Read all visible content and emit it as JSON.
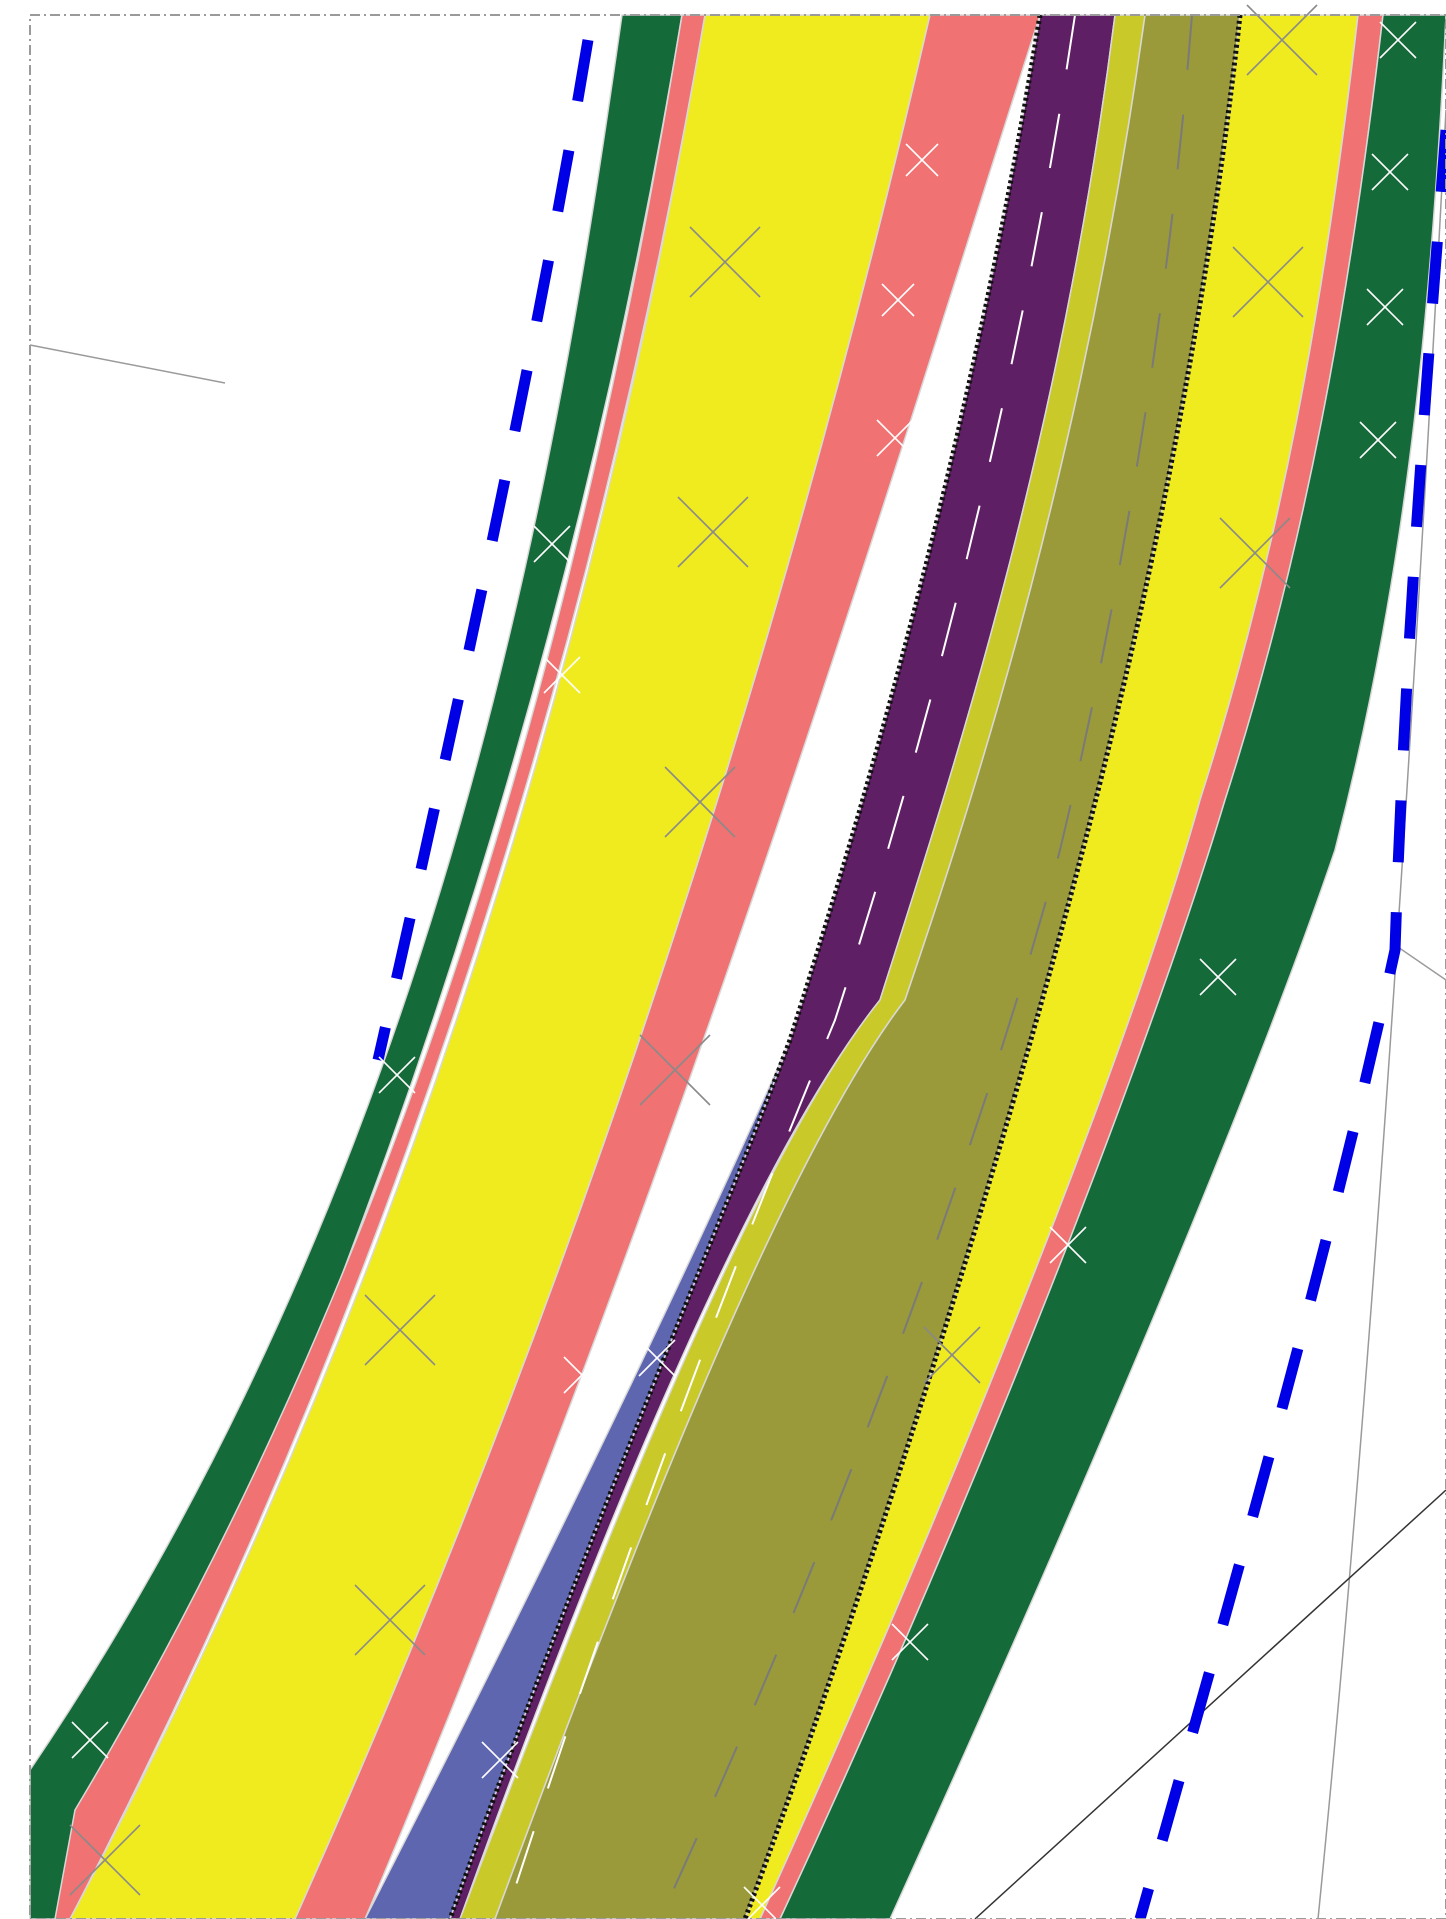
{
  "map": {
    "title": "",
    "description": "",
    "colors": {
      "background": "#ffffff",
      "verge_dark_green": "#146a38",
      "buffer_salmon": "#f07272",
      "yellow_lane": "#f0eb1e",
      "median_purple": "#5f1f64",
      "bike_blue": "#5f66b0",
      "lime_edge": "#c9c92a",
      "olive_lane": "#9a9a3a",
      "boundary_blue": "#0000e6",
      "frame_gray": "#9a9a9a",
      "thin_line": "#7a7a7a",
      "hatch_white": "#ffffff",
      "hatch_gray": "#8a8a8a",
      "dotted_black": "#111111"
    },
    "icons": [
      "cross-hatch-marker"
    ],
    "layers": [
      "left-verge",
      "left-buffer",
      "left-yellow-lane",
      "center-buffer",
      "bike-lane",
      "purple-median",
      "lime-edge",
      "olive-lane",
      "right-yellow-lane",
      "right-buffer",
      "right-verge",
      "left-boundary-line",
      "right-boundary-line",
      "frame"
    ]
  }
}
